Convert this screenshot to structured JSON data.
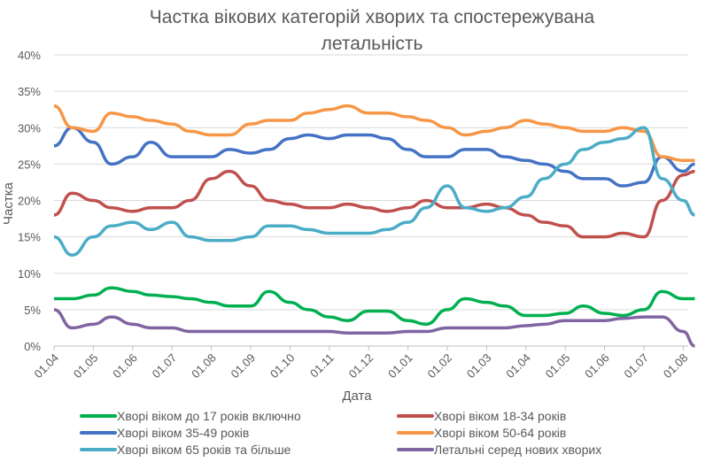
{
  "chart_data": {
    "type": "line",
    "title": [
      "Частка вікових категорій хворих та спостережувана",
      "летальність"
    ],
    "xlabel": "Дата",
    "ylabel": "Частка",
    "ylim": [
      0,
      40
    ],
    "yticks": [
      "0%",
      "5%",
      "10%",
      "15%",
      "20%",
      "25%",
      "30%",
      "35%",
      "40%"
    ],
    "xticks": [
      "01.04",
      "01.05",
      "01.06",
      "01.07",
      "01.08",
      "01.09",
      "01.10",
      "01.11",
      "01.12",
      "01.01",
      "01.02",
      "01.03",
      "01.04",
      "01.05",
      "01.06",
      "01.07",
      "01.08"
    ],
    "grid": true,
    "legend_position": "bottom",
    "x": [
      "2020-04-01",
      "2020-04-15",
      "2020-05-01",
      "2020-05-15",
      "2020-06-01",
      "2020-06-15",
      "2020-07-01",
      "2020-07-15",
      "2020-08-01",
      "2020-08-15",
      "2020-09-01",
      "2020-09-15",
      "2020-10-01",
      "2020-10-15",
      "2020-11-01",
      "2020-11-15",
      "2020-12-01",
      "2020-12-15",
      "2021-01-01",
      "2021-01-15",
      "2021-02-01",
      "2021-02-15",
      "2021-03-01",
      "2021-03-15",
      "2021-04-01",
      "2021-04-15",
      "2021-05-01",
      "2021-05-15",
      "2021-06-01",
      "2021-06-15",
      "2021-07-01",
      "2021-07-15",
      "2021-08-01",
      "2021-08-10"
    ],
    "series": [
      {
        "name": "Хворі віком до 17 років включно",
        "color": "#00b050",
        "values": [
          6.5,
          6.5,
          7,
          8,
          7.5,
          7,
          6.8,
          6.5,
          6,
          5.5,
          5.5,
          7.5,
          6,
          5,
          4,
          3.5,
          4.8,
          4.8,
          3.5,
          3,
          5,
          6.5,
          6,
          5.5,
          4.2,
          4.2,
          4.5,
          5.5,
          4.5,
          4.2,
          5,
          7.5,
          6.5,
          6.5
        ]
      },
      {
        "name": "Хворі віком 18-34 років",
        "color": "#c0504d",
        "values": [
          18,
          21,
          20,
          19,
          18.5,
          19,
          19,
          20,
          23,
          24,
          22,
          20,
          19.5,
          19,
          19,
          19.5,
          19,
          18.5,
          19,
          20,
          19,
          19,
          19.5,
          19,
          18,
          17,
          16.5,
          15,
          15,
          15.5,
          15,
          20,
          23.5,
          24
        ]
      },
      {
        "name": "Хворі віком 35-49 років",
        "color": "#4472c4",
        "values": [
          27.5,
          30,
          28,
          25,
          26,
          28,
          26,
          26,
          26,
          27,
          26.5,
          27,
          28.5,
          29,
          28.5,
          29,
          29,
          28.5,
          27,
          26,
          26,
          27,
          27,
          26,
          25.5,
          25,
          24,
          23,
          23,
          22,
          22.5,
          26,
          24,
          25
        ]
      },
      {
        "name": "Хворі віком 50-64 років",
        "color": "#f79646",
        "values": [
          33,
          30,
          29.5,
          32,
          31.5,
          31,
          30.5,
          29.5,
          29,
          29,
          30.5,
          31,
          31,
          32,
          32.5,
          33,
          32,
          32,
          31.5,
          31,
          30,
          29,
          29.5,
          30,
          31,
          30.5,
          30,
          29.5,
          29.5,
          30,
          29.5,
          26,
          25.5,
          25.5
        ]
      },
      {
        "name": "Хворі віком 65 років та більше",
        "color": "#4bacc6",
        "values": [
          15,
          12.5,
          15,
          16.5,
          17,
          16,
          17,
          15,
          14.5,
          14.5,
          15,
          16.5,
          16.5,
          16,
          15.5,
          15.5,
          15.5,
          16,
          17,
          19,
          22,
          19,
          18.5,
          19,
          20.5,
          23,
          25,
          27,
          28,
          28.5,
          30,
          23,
          20,
          18
        ]
      },
      {
        "name": "Летальні серед нових хворих",
        "color": "#8064a2",
        "values": [
          5,
          2.5,
          3,
          4,
          3,
          2.5,
          2.5,
          2,
          2,
          2,
          2,
          2,
          2,
          2,
          2,
          1.8,
          1.8,
          1.8,
          2,
          2,
          2.5,
          2.5,
          2.5,
          2.5,
          2.8,
          3,
          3.5,
          3.5,
          3.5,
          3.8,
          4,
          4,
          2,
          0
        ]
      }
    ]
  }
}
